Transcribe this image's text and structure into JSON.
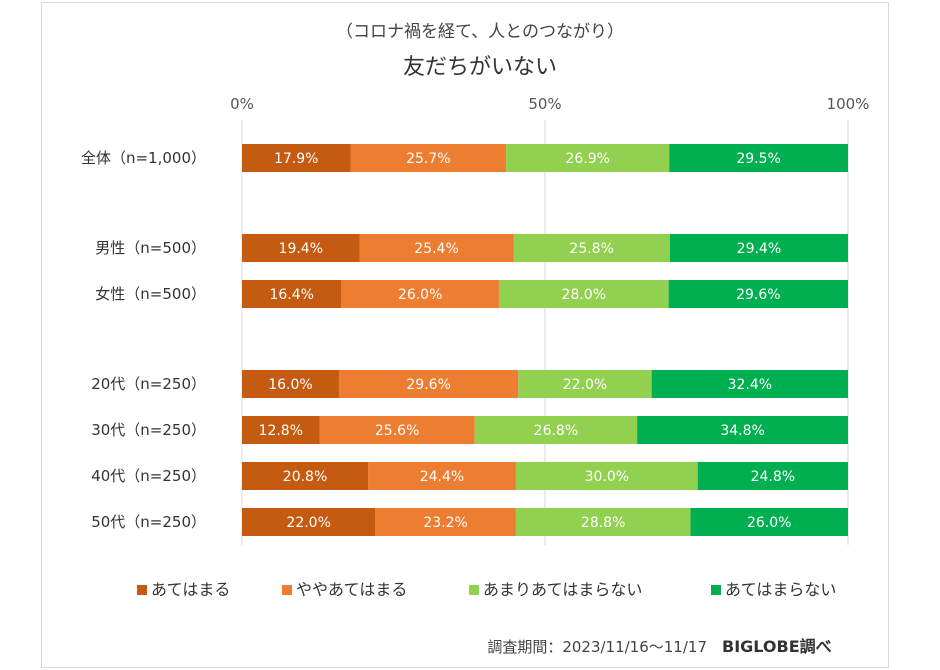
{
  "chart_data": {
    "type": "bar",
    "stacked": true,
    "orientation": "horizontal",
    "subtitle": "（コロナ禍を経て、人とのつながり）",
    "title": "友だちがいない",
    "x_ticks": [
      "0%",
      "50%",
      "100%"
    ],
    "xlim": [
      0,
      100
    ],
    "grid": true,
    "legend_position": "bottom",
    "categories": [
      "全体（n=1,000）",
      "男性（n=500）",
      "女性（n=500）",
      "20代（n=250）",
      "30代（n=250）",
      "40代（n=250）",
      "50代（n=250）"
    ],
    "series": [
      {
        "name": "あてはまる",
        "color": "#c55a11",
        "values": [
          17.9,
          19.4,
          16.4,
          16.0,
          12.8,
          20.8,
          22.0
        ]
      },
      {
        "name": "ややあてはまる",
        "color": "#ed7d31",
        "values": [
          25.7,
          25.4,
          26.0,
          29.6,
          25.6,
          24.4,
          23.2
        ]
      },
      {
        "name": "あまりあてはまらない",
        "color": "#92d050",
        "values": [
          26.9,
          25.8,
          28.0,
          22.0,
          26.8,
          30.0,
          28.8
        ]
      },
      {
        "name": "あてはまらない",
        "color": "#00b050",
        "values": [
          29.5,
          29.4,
          29.6,
          32.4,
          34.8,
          24.8,
          26.0
        ]
      }
    ]
  },
  "footer": {
    "survey_period": "調査期間：2023/11/16～11/17",
    "brand": "BIGLOBE調べ"
  }
}
